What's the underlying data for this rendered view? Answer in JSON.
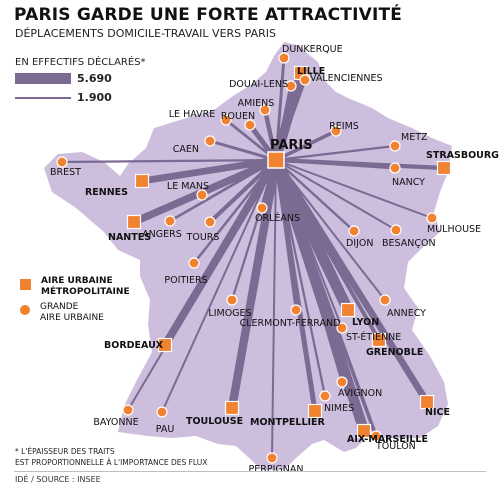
{
  "title": "PARIS GARDE UNE FORTE ATTRACTIVITÉ",
  "subtitle": "DÉPLACEMENTS DOMICILE-TRAVAIL VERS PARIS",
  "legend": {
    "title": "EN EFFECTIFS DÉCLARÉS*",
    "max_label": "5.690",
    "min_label": "1.900",
    "metro_label": "AIRE URBAINE\nMÉTROPOLITAINE",
    "grande_label": "GRANDE\nAIRE URBAINE"
  },
  "footnote": "* L'ÉPAISSEUR DES TRAITS\nEST PROPORTIONNELLE À L'IMPORTANCE DES FLUX",
  "source": "IDÉ / SOURCE : INSEE",
  "colors": {
    "land": "#cdbede",
    "flow": "#7b6a92",
    "marker": "#f08230"
  },
  "hub": "PARIS",
  "cities": [
    {
      "name": "DUNKERQUE",
      "kind": "grande",
      "flow": 2300
    },
    {
      "name": "LILLE",
      "kind": "metro",
      "flow": 5000
    },
    {
      "name": "VALENCIENNES",
      "kind": "grande",
      "flow": 2400
    },
    {
      "name": "DOUAI-LENS",
      "kind": "grande",
      "flow": 2600
    },
    {
      "name": "AMIENS",
      "kind": "grande",
      "flow": 2900
    },
    {
      "name": "LE HAVRE",
      "kind": "grande",
      "flow": 2200
    },
    {
      "name": "ROUEN",
      "kind": "grande",
      "flow": 3200
    },
    {
      "name": "REIMS",
      "kind": "grande",
      "flow": 2600
    },
    {
      "name": "CAEN",
      "kind": "grande",
      "flow": 2300
    },
    {
      "name": "METZ",
      "kind": "grande",
      "flow": 2000
    },
    {
      "name": "STRASBOURG",
      "kind": "metro",
      "flow": 2900
    },
    {
      "name": "BREST",
      "kind": "grande",
      "flow": 2000
    },
    {
      "name": "NANCY",
      "kind": "grande",
      "flow": 2300
    },
    {
      "name": "RENNES",
      "kind": "metro",
      "flow": 3900
    },
    {
      "name": "LE MANS",
      "kind": "grande",
      "flow": 2300
    },
    {
      "name": "MULHOUSE",
      "kind": "grande",
      "flow": 1900
    },
    {
      "name": "NANTES",
      "kind": "metro",
      "flow": 4200
    },
    {
      "name": "ANGERS",
      "kind": "grande",
      "flow": 2200
    },
    {
      "name": "TOURS",
      "kind": "grande",
      "flow": 2800
    },
    {
      "name": "ORLÉANS",
      "kind": "grande",
      "flow": 2900
    },
    {
      "name": "DIJON",
      "kind": "grande",
      "flow": 2100
    },
    {
      "name": "BESANÇON",
      "kind": "grande",
      "flow": 1900
    },
    {
      "name": "POITIERS",
      "kind": "grande",
      "flow": 2100
    },
    {
      "name": "LIMOGES",
      "kind": "grande",
      "flow": 2000
    },
    {
      "name": "CLERMONT-FERRAND",
      "kind": "grande",
      "flow": 2200
    },
    {
      "name": "LYON",
      "kind": "metro",
      "flow": 5690
    },
    {
      "name": "ANNECY",
      "kind": "grande",
      "flow": 1900
    },
    {
      "name": "ST-ÉTIENNE",
      "kind": "grande",
      "flow": 1900
    },
    {
      "name": "GRENOBLE",
      "kind": "metro",
      "flow": 2700
    },
    {
      "name": "BORDEAUX",
      "kind": "metro",
      "flow": 4400
    },
    {
      "name": "AVIGNON",
      "kind": "grande",
      "flow": 2000
    },
    {
      "name": "NIMES",
      "kind": "grande",
      "flow": 2000
    },
    {
      "name": "MONTPELLIER",
      "kind": "metro",
      "flow": 3200
    },
    {
      "name": "TOULOUSE",
      "kind": "metro",
      "flow": 4600
    },
    {
      "name": "BAYONNE",
      "kind": "grande",
      "flow": 1900
    },
    {
      "name": "PAU",
      "kind": "grande",
      "flow": 1900
    },
    {
      "name": "NICE",
      "kind": "metro",
      "flow": 3900
    },
    {
      "name": "AIX-MARSEILLE",
      "kind": "metro",
      "flow": 5400
    },
    {
      "name": "TOULON",
      "kind": "grande",
      "flow": 2600
    },
    {
      "name": "PERPIGNAN",
      "kind": "grande",
      "flow": 1900
    }
  ]
}
